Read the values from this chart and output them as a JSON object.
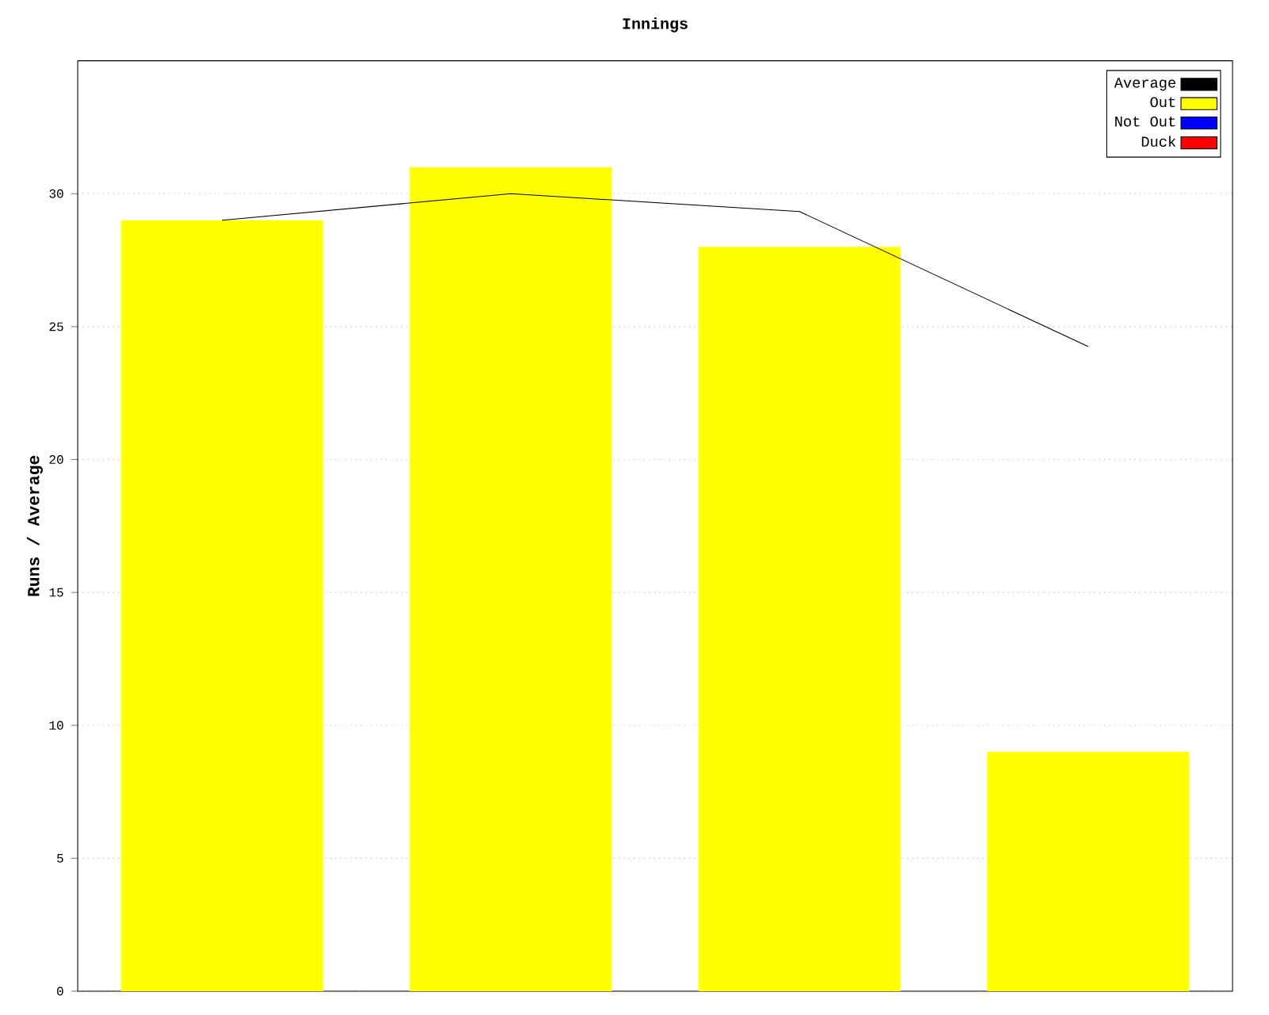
{
  "chart_data": {
    "type": "bar",
    "title": "Innings",
    "ylabel": "Runs / Average",
    "categories": [
      null,
      null,
      null,
      null
    ],
    "series": [
      {
        "name": "Average",
        "type": "line",
        "color": "#000000",
        "values": [
          29,
          30,
          29.33,
          24.25
        ]
      },
      {
        "name": "Out",
        "color": "#ffff00",
        "values": [
          29,
          31,
          28,
          9
        ]
      },
      {
        "name": "Not Out",
        "color": "#0000ff",
        "values": [
          null,
          null,
          null,
          null
        ]
      },
      {
        "name": "Duck",
        "color": "#ff0000",
        "values": [
          null,
          null,
          null,
          null
        ]
      }
    ],
    "ylim": [
      0,
      35
    ],
    "yticks": [
      0,
      5,
      10,
      15,
      20,
      25,
      30
    ],
    "grid": "y",
    "legend": "top right",
    "tick_labels": "y",
    "marker": "none"
  }
}
